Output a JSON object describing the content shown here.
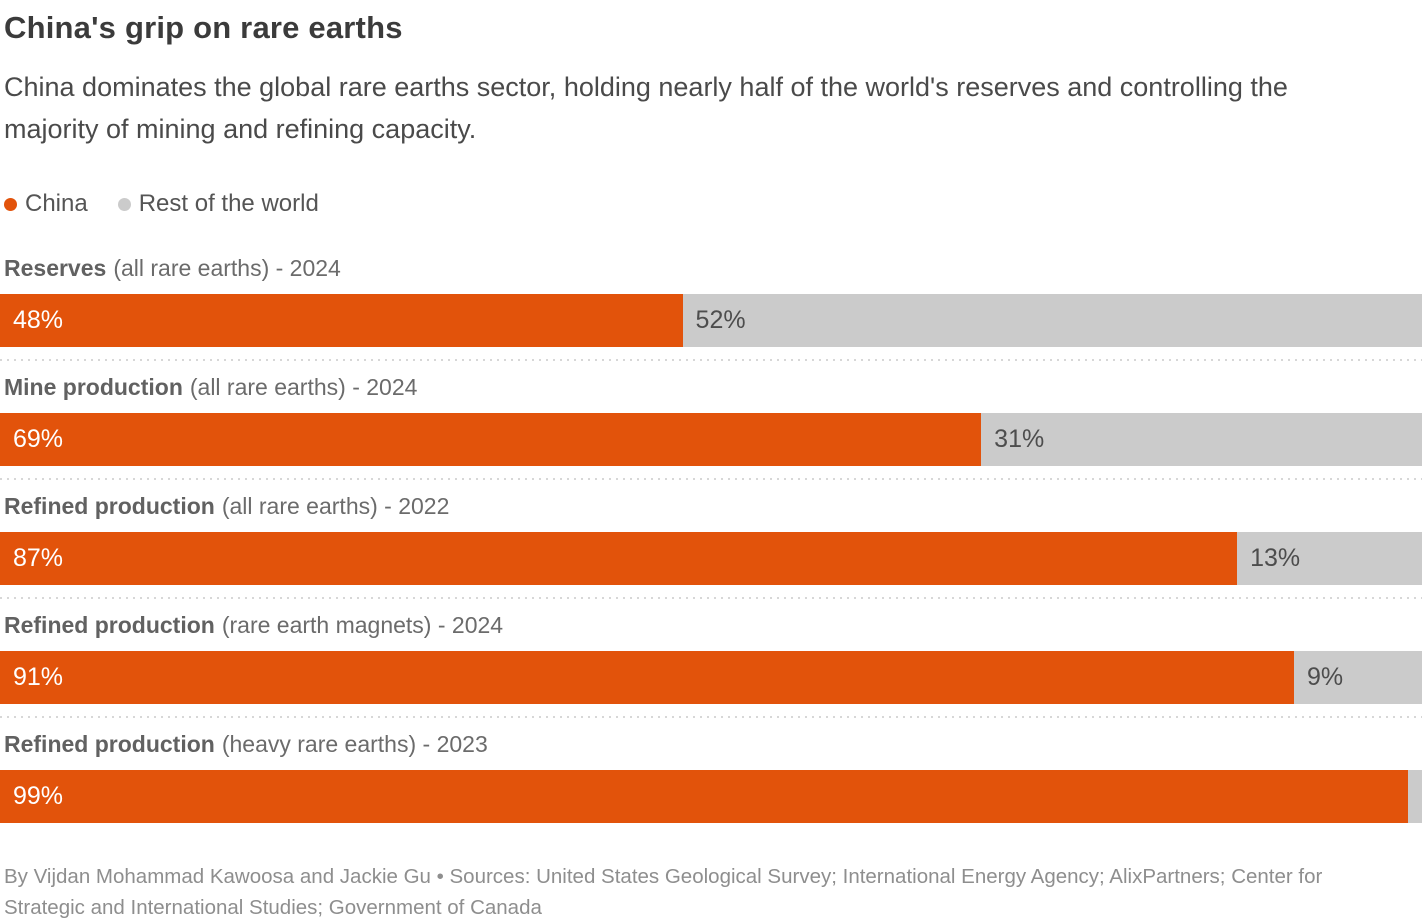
{
  "header": {
    "title": "China's grip on rare earths",
    "subtitle": "China dominates the global rare earths sector, holding nearly half of the world's reserves and controlling the majority of mining and refining capacity."
  },
  "legend": {
    "china_label": "China",
    "rest_label": "Rest of the world"
  },
  "chart_data": {
    "type": "bar",
    "orientation": "horizontal",
    "stacked": true,
    "unit": "percent",
    "x_range": [
      0,
      100
    ],
    "grid": false,
    "legend_position": "top",
    "series_names": [
      "China",
      "Rest of the world"
    ],
    "colors": {
      "china": "#E2530B",
      "rest": "#CBCBCB"
    },
    "rows": [
      {
        "metric": "Reserves",
        "qualifier": "(all rare earths) - 2024",
        "china": 48,
        "rest": 52,
        "china_label": "48%",
        "rest_label": "52%"
      },
      {
        "metric": "Mine production",
        "qualifier": "(all rare earths) - 2024",
        "china": 69,
        "rest": 31,
        "china_label": "69%",
        "rest_label": "31%"
      },
      {
        "metric": "Refined production",
        "qualifier": "(all rare earths) - 2022",
        "china": 87,
        "rest": 13,
        "china_label": "87%",
        "rest_label": "13%"
      },
      {
        "metric": "Refined production",
        "qualifier": "(rare earth magnets) - 2024",
        "china": 91,
        "rest": 9,
        "china_label": "91%",
        "rest_label": "9%"
      },
      {
        "metric": "Refined production",
        "qualifier": "(heavy rare earths) - 2023",
        "china": 99,
        "rest": 1,
        "china_label": "99%",
        "rest_label": ""
      }
    ]
  },
  "footer": {
    "credit": "By Vijdan Mohammad Kawoosa and Jackie Gu • Sources: United States Geological Survey; International Energy Agency; AlixPartners; Center for Strategic and International Studies; Government of Canada"
  }
}
